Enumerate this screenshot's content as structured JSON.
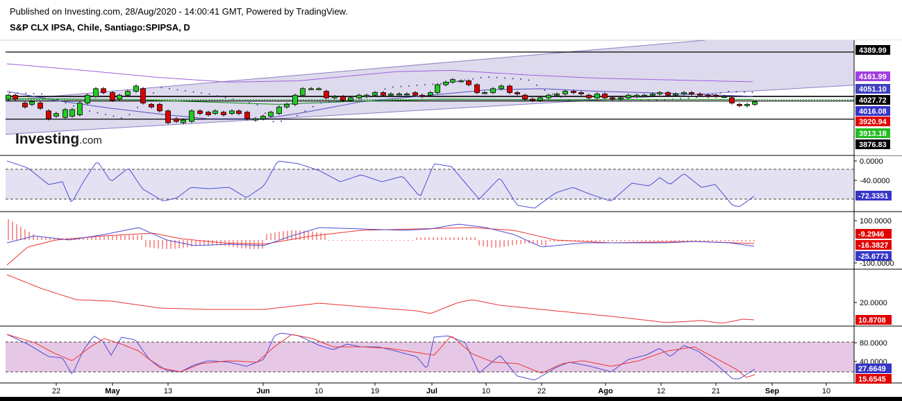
{
  "header": {
    "published": "Published on Investing.com, 28/Aug/2020 - 14:00:41 GMT, Powered by TradingView.",
    "symbol": "S&P CLX IPSA, Chile, Santiago:SPIPSA, D"
  },
  "watermark": {
    "brand": "Investing",
    "suffix": ".com"
  },
  "colors": {
    "up": "#22cc22",
    "down": "#dd0000",
    "channel_fill": "#d8d4ea",
    "channel_line": "#8a7fc4",
    "ma_purple": "#a060e0",
    "ma_blue": "#5050c0",
    "ma_green": "#00aa00",
    "osc_blue": "#4b4bd6",
    "osc_red": "#ee3333",
    "stoch_fill": "#e6c8e6"
  },
  "x_axis": {
    "ticks": [
      {
        "label": "22",
        "x": 81
      },
      {
        "label": "May",
        "x": 162
      },
      {
        "label": "13",
        "x": 242
      },
      {
        "label": "Jun",
        "x": 379
      },
      {
        "label": "10",
        "x": 459
      },
      {
        "label": "19",
        "x": 540
      },
      {
        "label": "Jul",
        "x": 622
      },
      {
        "label": "10",
        "x": 700
      },
      {
        "label": "22",
        "x": 780
      },
      {
        "label": "Ago",
        "x": 872
      },
      {
        "label": "12",
        "x": 952
      },
      {
        "label": "21",
        "x": 1031
      },
      {
        "label": "Sep",
        "x": 1112
      },
      {
        "label": "10",
        "x": 1190
      }
    ]
  },
  "price_tags": [
    {
      "value": "4389.99",
      "price": 4389.99,
      "bg": "#000000"
    },
    {
      "value": "4161.99",
      "price": 4161.99,
      "bg": "#a040e0"
    },
    {
      "value": "4051.10",
      "price": 4051.1,
      "bg": "#4040c0"
    },
    {
      "value": "4027.72",
      "price": 4027.72,
      "bg": "#000000"
    },
    {
      "value": "4016.08",
      "price": 4016.08,
      "bg": "#3535c8"
    },
    {
      "value": "3920.94",
      "price": 3920.94,
      "bg": "#e00000"
    },
    {
      "value": "3913.18",
      "price": 3913.18,
      "bg": "#22bb22"
    },
    {
      "value": "3876.83",
      "price": 3876.83,
      "bg": "#000000"
    }
  ],
  "chart_data": [
    {
      "type": "candlestick",
      "ylim": [
        3600,
        4480
      ],
      "hlines": [
        4389.99,
        4051.1,
        4016.08,
        3876.83
      ],
      "channel": {
        "upper": [
          [
            5,
            4020
          ],
          [
            1015,
            4480
          ]
        ],
        "lower": [
          [
            5,
            3760
          ],
          [
            1240,
            4140
          ]
        ]
      },
      "candles": [
        {
          "x": 12,
          "o": 4030,
          "c": 4060
        },
        {
          "x": 22,
          "o": 4060,
          "c": 4030
        },
        {
          "x": 36,
          "o": 4000,
          "c": 3970
        },
        {
          "x": 46,
          "o": 3990,
          "c": 4010
        },
        {
          "x": 58,
          "o": 4000,
          "c": 3960
        },
        {
          "x": 70,
          "o": 3940,
          "c": 3880
        },
        {
          "x": 81,
          "o": 3900,
          "c": 3920
        },
        {
          "x": 94,
          "o": 3890,
          "c": 3950
        },
        {
          "x": 104,
          "o": 3900,
          "c": 3950
        },
        {
          "x": 115,
          "o": 3910,
          "c": 4000
        },
        {
          "x": 126,
          "o": 4000,
          "c": 4060
        },
        {
          "x": 138,
          "o": 4050,
          "c": 4110
        },
        {
          "x": 149,
          "o": 4110,
          "c": 4080
        },
        {
          "x": 162,
          "o": 4080,
          "c": 4020
        },
        {
          "x": 172,
          "o": 4030,
          "c": 4060
        },
        {
          "x": 184,
          "o": 4060,
          "c": 4090
        },
        {
          "x": 196,
          "o": 4090,
          "c": 4130
        },
        {
          "x": 206,
          "o": 4110,
          "c": 4000
        },
        {
          "x": 218,
          "o": 3990,
          "c": 3970
        },
        {
          "x": 230,
          "o": 3990,
          "c": 3940
        },
        {
          "x": 242,
          "o": 3940,
          "c": 3850
        },
        {
          "x": 254,
          "o": 3880,
          "c": 3860
        },
        {
          "x": 264,
          "o": 3850,
          "c": 3870
        },
        {
          "x": 276,
          "o": 3860,
          "c": 3940
        },
        {
          "x": 288,
          "o": 3940,
          "c": 3920
        },
        {
          "x": 300,
          "o": 3930,
          "c": 3910
        },
        {
          "x": 310,
          "o": 3920,
          "c": 3940
        },
        {
          "x": 322,
          "o": 3930,
          "c": 3910
        },
        {
          "x": 334,
          "o": 3920,
          "c": 3940
        },
        {
          "x": 344,
          "o": 3940,
          "c": 3920
        },
        {
          "x": 356,
          "o": 3930,
          "c": 3880
        },
        {
          "x": 368,
          "o": 3870,
          "c": 3880
        },
        {
          "x": 379,
          "o": 3880,
          "c": 3900
        },
        {
          "x": 390,
          "o": 3900,
          "c": 3930
        },
        {
          "x": 402,
          "o": 3920,
          "c": 3970
        },
        {
          "x": 413,
          "o": 3970,
          "c": 3990
        },
        {
          "x": 425,
          "o": 3990,
          "c": 4060
        },
        {
          "x": 436,
          "o": 4060,
          "c": 4110
        },
        {
          "x": 448,
          "o": 4110,
          "c": 4110
        },
        {
          "x": 459,
          "o": 4110,
          "c": 4110
        },
        {
          "x": 470,
          "o": 4090,
          "c": 4040
        },
        {
          "x": 482,
          "o": 4040,
          "c": 4050
        },
        {
          "x": 494,
          "o": 4050,
          "c": 4020
        },
        {
          "x": 505,
          "o": 4020,
          "c": 4040
        },
        {
          "x": 517,
          "o": 4040,
          "c": 4060
        },
        {
          "x": 528,
          "o": 4050,
          "c": 4060
        },
        {
          "x": 540,
          "o": 4060,
          "c": 4080
        },
        {
          "x": 552,
          "o": 4080,
          "c": 4060
        },
        {
          "x": 563,
          "o": 4060,
          "c": 4070
        },
        {
          "x": 575,
          "o": 4070,
          "c": 4070
        },
        {
          "x": 586,
          "o": 4070,
          "c": 4070
        },
        {
          "x": 598,
          "o": 4080,
          "c": 4060
        },
        {
          "x": 608,
          "o": 4060,
          "c": 4050
        },
        {
          "x": 620,
          "o": 4060,
          "c": 4080
        },
        {
          "x": 630,
          "o": 4080,
          "c": 4140
        },
        {
          "x": 642,
          "o": 4140,
          "c": 4160
        },
        {
          "x": 652,
          "o": 4160,
          "c": 4180
        },
        {
          "x": 664,
          "o": 4170,
          "c": 4170
        },
        {
          "x": 675,
          "o": 4170,
          "c": 4140
        },
        {
          "x": 687,
          "o": 4140,
          "c": 4080
        },
        {
          "x": 698,
          "o": 4080,
          "c": 4080
        },
        {
          "x": 710,
          "o": 4080,
          "c": 4110
        },
        {
          "x": 722,
          "o": 4110,
          "c": 4130
        },
        {
          "x": 734,
          "o": 4130,
          "c": 4080
        },
        {
          "x": 745,
          "o": 4080,
          "c": 4070
        },
        {
          "x": 756,
          "o": 4060,
          "c": 4030
        },
        {
          "x": 767,
          "o": 4030,
          "c": 4020
        },
        {
          "x": 778,
          "o": 4020,
          "c": 4040
        },
        {
          "x": 790,
          "o": 4040,
          "c": 4060
        },
        {
          "x": 802,
          "o": 4060,
          "c": 4070
        },
        {
          "x": 814,
          "o": 4070,
          "c": 4090
        },
        {
          "x": 826,
          "o": 4090,
          "c": 4080
        },
        {
          "x": 837,
          "o": 4080,
          "c": 4070
        },
        {
          "x": 848,
          "o": 4060,
          "c": 4040
        },
        {
          "x": 860,
          "o": 4040,
          "c": 4070
        },
        {
          "x": 871,
          "o": 4070,
          "c": 4040
        },
        {
          "x": 882,
          "o": 4040,
          "c": 4030
        },
        {
          "x": 894,
          "o": 4030,
          "c": 4040
        },
        {
          "x": 905,
          "o": 4040,
          "c": 4060
        },
        {
          "x": 917,
          "o": 4050,
          "c": 4060
        },
        {
          "x": 928,
          "o": 4060,
          "c": 4060
        },
        {
          "x": 940,
          "o": 4060,
          "c": 4070
        },
        {
          "x": 950,
          "o": 4070,
          "c": 4080
        },
        {
          "x": 962,
          "o": 4080,
          "c": 4060
        },
        {
          "x": 973,
          "o": 4060,
          "c": 4070
        },
        {
          "x": 985,
          "o": 4070,
          "c": 4080
        },
        {
          "x": 996,
          "o": 4080,
          "c": 4070
        },
        {
          "x": 1008,
          "o": 4070,
          "c": 4060
        },
        {
          "x": 1020,
          "o": 4060,
          "c": 4050
        },
        {
          "x": 1031,
          "o": 4060,
          "c": 4050
        },
        {
          "x": 1043,
          "o": 4050,
          "c": 4050
        },
        {
          "x": 1054,
          "o": 4040,
          "c": 4000
        },
        {
          "x": 1065,
          "o": 3990,
          "c": 3980
        },
        {
          "x": 1076,
          "o": 3980,
          "c": 3990
        },
        {
          "x": 1087,
          "o": 3990,
          "c": 4010
        }
      ]
    },
    {
      "type": "line",
      "name": "",
      "ylim": [
        -90,
        10
      ],
      "ticks": [
        "0.0000",
        "-40.0000"
      ],
      "current": "-72.3351"
    },
    {
      "type": "line",
      "ticks": [
        "100.0000",
        "-100.0000"
      ],
      "current": [
        "-9.2946",
        "-16.3827",
        "-25.6773"
      ]
    },
    {
      "type": "line",
      "ticks": [
        "20.0000"
      ],
      "current": "10.8708"
    },
    {
      "type": "line",
      "ticks": [
        "80.0000",
        "40.0000"
      ],
      "current": [
        "27.6649",
        "15.6545"
      ]
    }
  ]
}
